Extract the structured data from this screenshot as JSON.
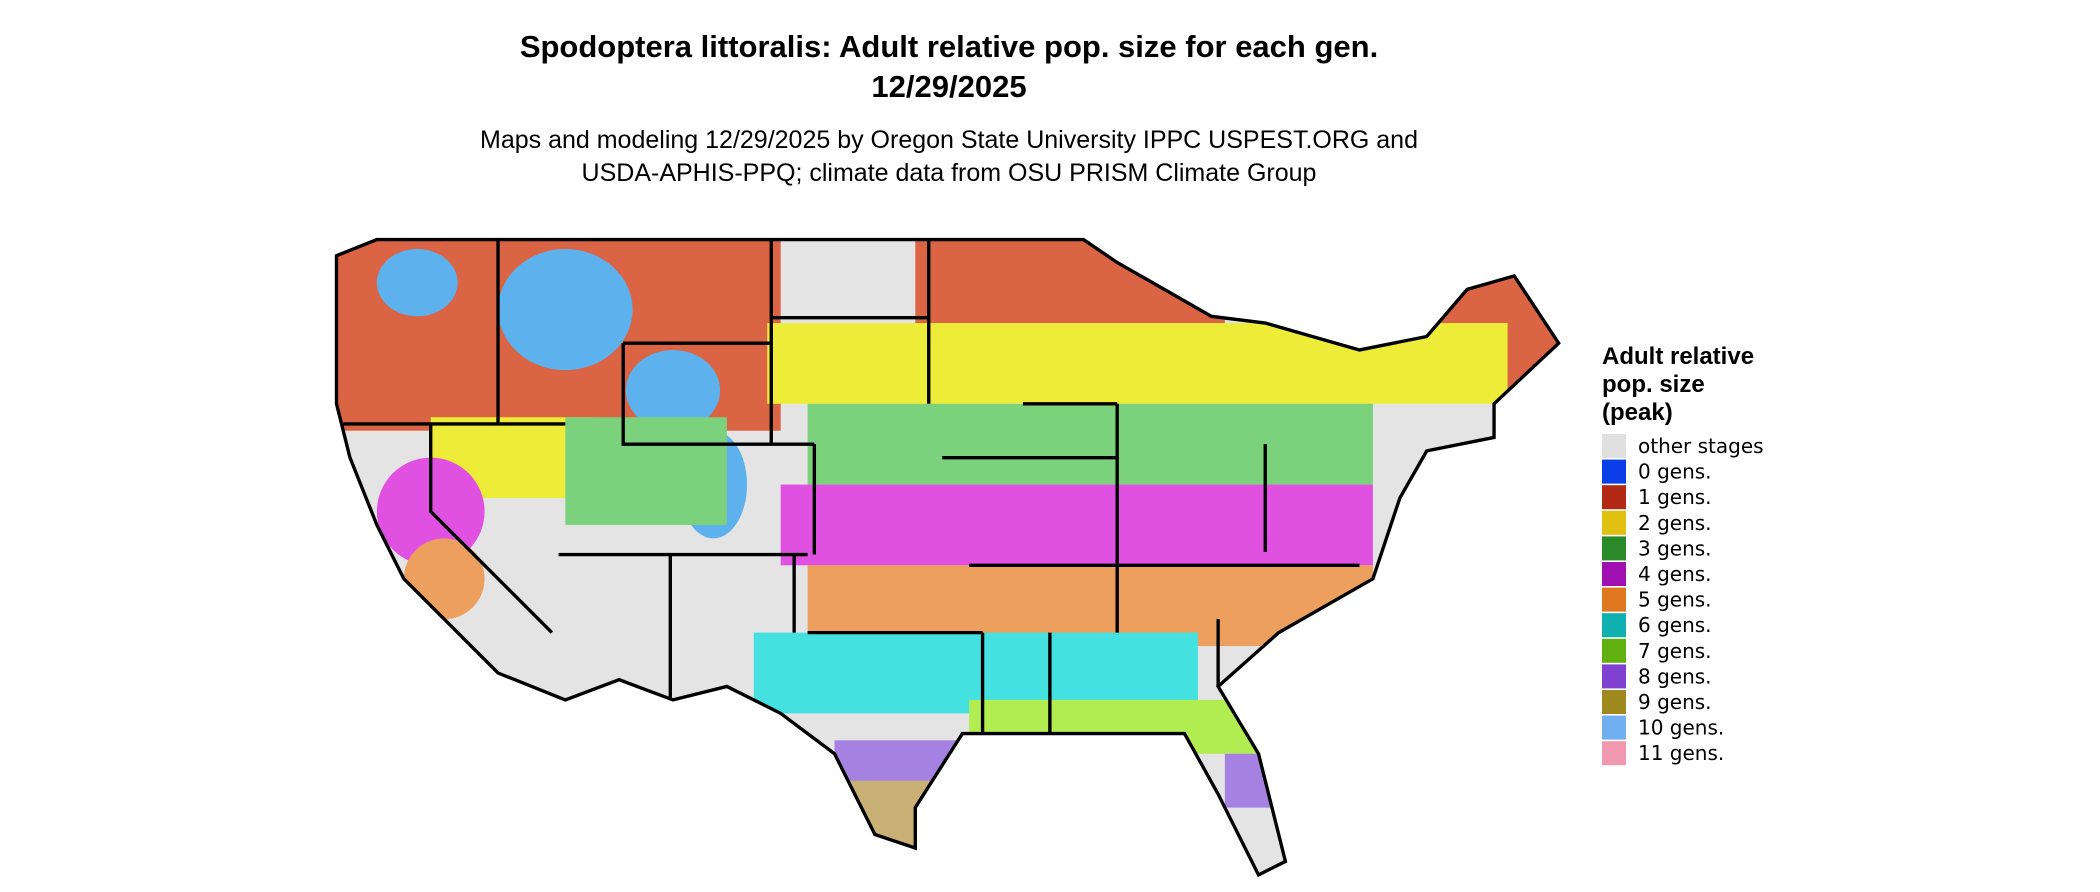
{
  "title": [
    "Spodoptera littoralis: Adult relative pop. size for each gen.",
    "12/29/2025"
  ],
  "subtitle": [
    "Maps and modeling 12/29/2025 by Oregon State University IPPC USPEST.ORG and",
    "USDA-APHIS-PPQ; climate data from OSU PRISM Climate Group"
  ],
  "legend": {
    "title": [
      "Adult relative",
      "pop. size",
      "(peak)"
    ],
    "items": [
      {
        "label": "other stages",
        "color": "#e0e0e0"
      },
      {
        "label": "0 gens.",
        "color": "#0a3ee6"
      },
      {
        "label": "1 gens.",
        "color": "#b22a14"
      },
      {
        "label": "2 gens.",
        "color": "#e0c010"
      },
      {
        "label": "3 gens.",
        "color": "#2a8a2a"
      },
      {
        "label": "4 gens.",
        "color": "#a010b0"
      },
      {
        "label": "5 gens.",
        "color": "#e07820"
      },
      {
        "label": "6 gens.",
        "color": "#10b0b0"
      },
      {
        "label": "7 gens.",
        "color": "#60b010"
      },
      {
        "label": "8 gens.",
        "color": "#8040d0"
      },
      {
        "label": "9 gens.",
        "color": "#a08a20"
      },
      {
        "label": "10 gens.",
        "color": "#70b0f0"
      },
      {
        "label": "11 gens.",
        "color": "#f098b0"
      }
    ]
  }
}
